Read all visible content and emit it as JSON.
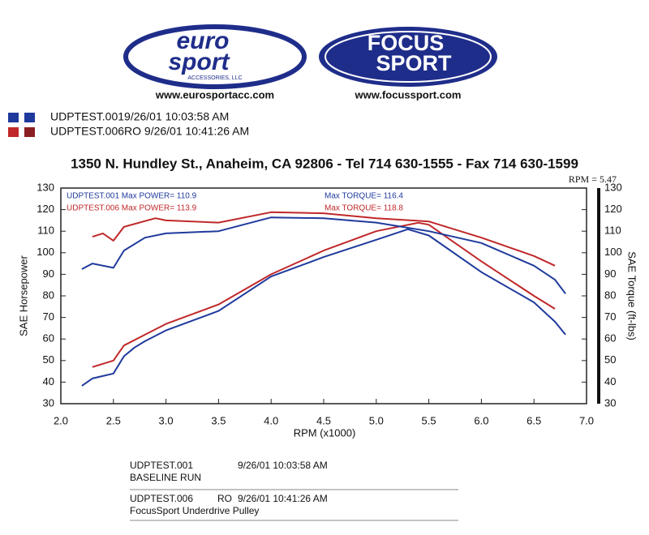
{
  "header": {
    "logos": [
      {
        "main": "euro",
        "second": "sport",
        "sub": "ACCESSORIES, LLC",
        "url": "www.eurosportacc.com"
      },
      {
        "main": "FOCUS",
        "second": "SPORT",
        "url": "www.focussport.com"
      }
    ],
    "address": "1350 N. Hundley St., Anaheim, CA 92806 - Tel 714 630-1555 - Fax 714 630-1599"
  },
  "legend": [
    {
      "label": "UDPTEST.0019/26/01 10:03:58 AM",
      "colors": [
        "#1f3a9c",
        "#1f3a9c"
      ]
    },
    {
      "label": "UDPTEST.006RO  9/26/01 10:41:26 AM",
      "colors": [
        "#c0282a",
        "#8a1f22"
      ]
    }
  ],
  "chart_data": {
    "type": "line",
    "cursor": "RPM = 5.47",
    "x_label": "RPM (x1000)",
    "y_label": "SAE Horsepower",
    "y2_label": "SAE Torque (ft-lbs)",
    "annotations": [
      "UDPTEST.001  Max POWER= 110.9",
      "UDPTEST.006  Max POWER= 113.9",
      "Max TORQUE= 116.4",
      "Max TORQUE= 118.8"
    ],
    "annotation_colors": [
      "#1f3a9c",
      "#c0282a",
      "#1f3a9c",
      "#c0282a"
    ],
    "xlim": [
      2,
      7
    ],
    "xticks": [
      {
        "value": 2,
        "label": "2.0"
      },
      2.5,
      {
        "value": 3,
        "label": "3.0"
      },
      3.5,
      {
        "value": 4,
        "label": "4.0"
      },
      4.5,
      {
        "value": 5,
        "label": "5.0"
      },
      5.5,
      {
        "value": 6,
        "label": "6.0"
      },
      6.5,
      {
        "value": 7,
        "label": "7.0"
      }
    ],
    "ylim": [
      30,
      130
    ],
    "yticks": [
      30,
      40,
      50,
      60,
      70,
      80,
      90,
      100,
      110,
      120,
      130
    ],
    "y2lim": [
      30,
      130
    ],
    "y2ticks": [
      30,
      40,
      50,
      60,
      70,
      80,
      90,
      100,
      110,
      120,
      130
    ],
    "grid": false,
    "series": [
      {
        "color": "#1f3a9c",
        "x": [
          2.2,
          2.3,
          2.5,
          2.6,
          2.7,
          2.8,
          3.0,
          3.5,
          4.0,
          4.5,
          5.0,
          5.3,
          5.5,
          6.0,
          6.5,
          6.7,
          6.8
        ],
        "values": [
          38.3,
          41.7,
          44,
          52,
          56,
          59,
          64,
          73,
          89,
          98,
          106,
          110.9,
          108,
          91,
          77,
          68,
          62
        ]
      },
      {
        "color": "#c0282a",
        "x": [
          2.3,
          2.5,
          2.6,
          2.8,
          3.0,
          3.5,
          4.0,
          4.5,
          5.0,
          5.4,
          5.5,
          6.0,
          6.5,
          6.7
        ],
        "values": [
          47,
          50,
          57,
          62,
          67,
          76,
          90,
          101,
          110,
          113.9,
          113,
          96,
          80,
          74
        ]
      },
      {
        "color": "#1f3a9c",
        "axis": "y2",
        "x": [
          2.2,
          2.3,
          2.5,
          2.6,
          2.8,
          3.0,
          3.5,
          4.0,
          4.5,
          5.0,
          5.5,
          6.0,
          6.5,
          6.7,
          6.8
        ],
        "values": [
          92.4,
          95,
          93,
          101,
          107,
          109,
          110,
          116.4,
          116,
          114,
          110,
          104.5,
          94,
          87.5,
          81
        ]
      },
      {
        "color": "#c0282a",
        "axis": "y2",
        "x": [
          2.3,
          2.4,
          2.5,
          2.6,
          2.9,
          3.0,
          3.5,
          4.0,
          4.5,
          5.0,
          5.5,
          6.0,
          6.5,
          6.7
        ],
        "values": [
          107.4,
          109,
          105.6,
          112,
          116,
          115,
          114,
          118.8,
          118.3,
          116,
          114.5,
          107,
          98.5,
          94
        ]
      }
    ]
  },
  "notes": [
    {
      "run": "UDPTEST.001",
      "tag": "",
      "date": "9/26/01 10:03:58 AM",
      "desc": "BASELINE RUN"
    },
    {
      "run": "UDPTEST.006",
      "tag": "RO",
      "date": "9/26/01 10:41:26 AM",
      "desc": "FocusSport Underdrive Pulley"
    }
  ]
}
